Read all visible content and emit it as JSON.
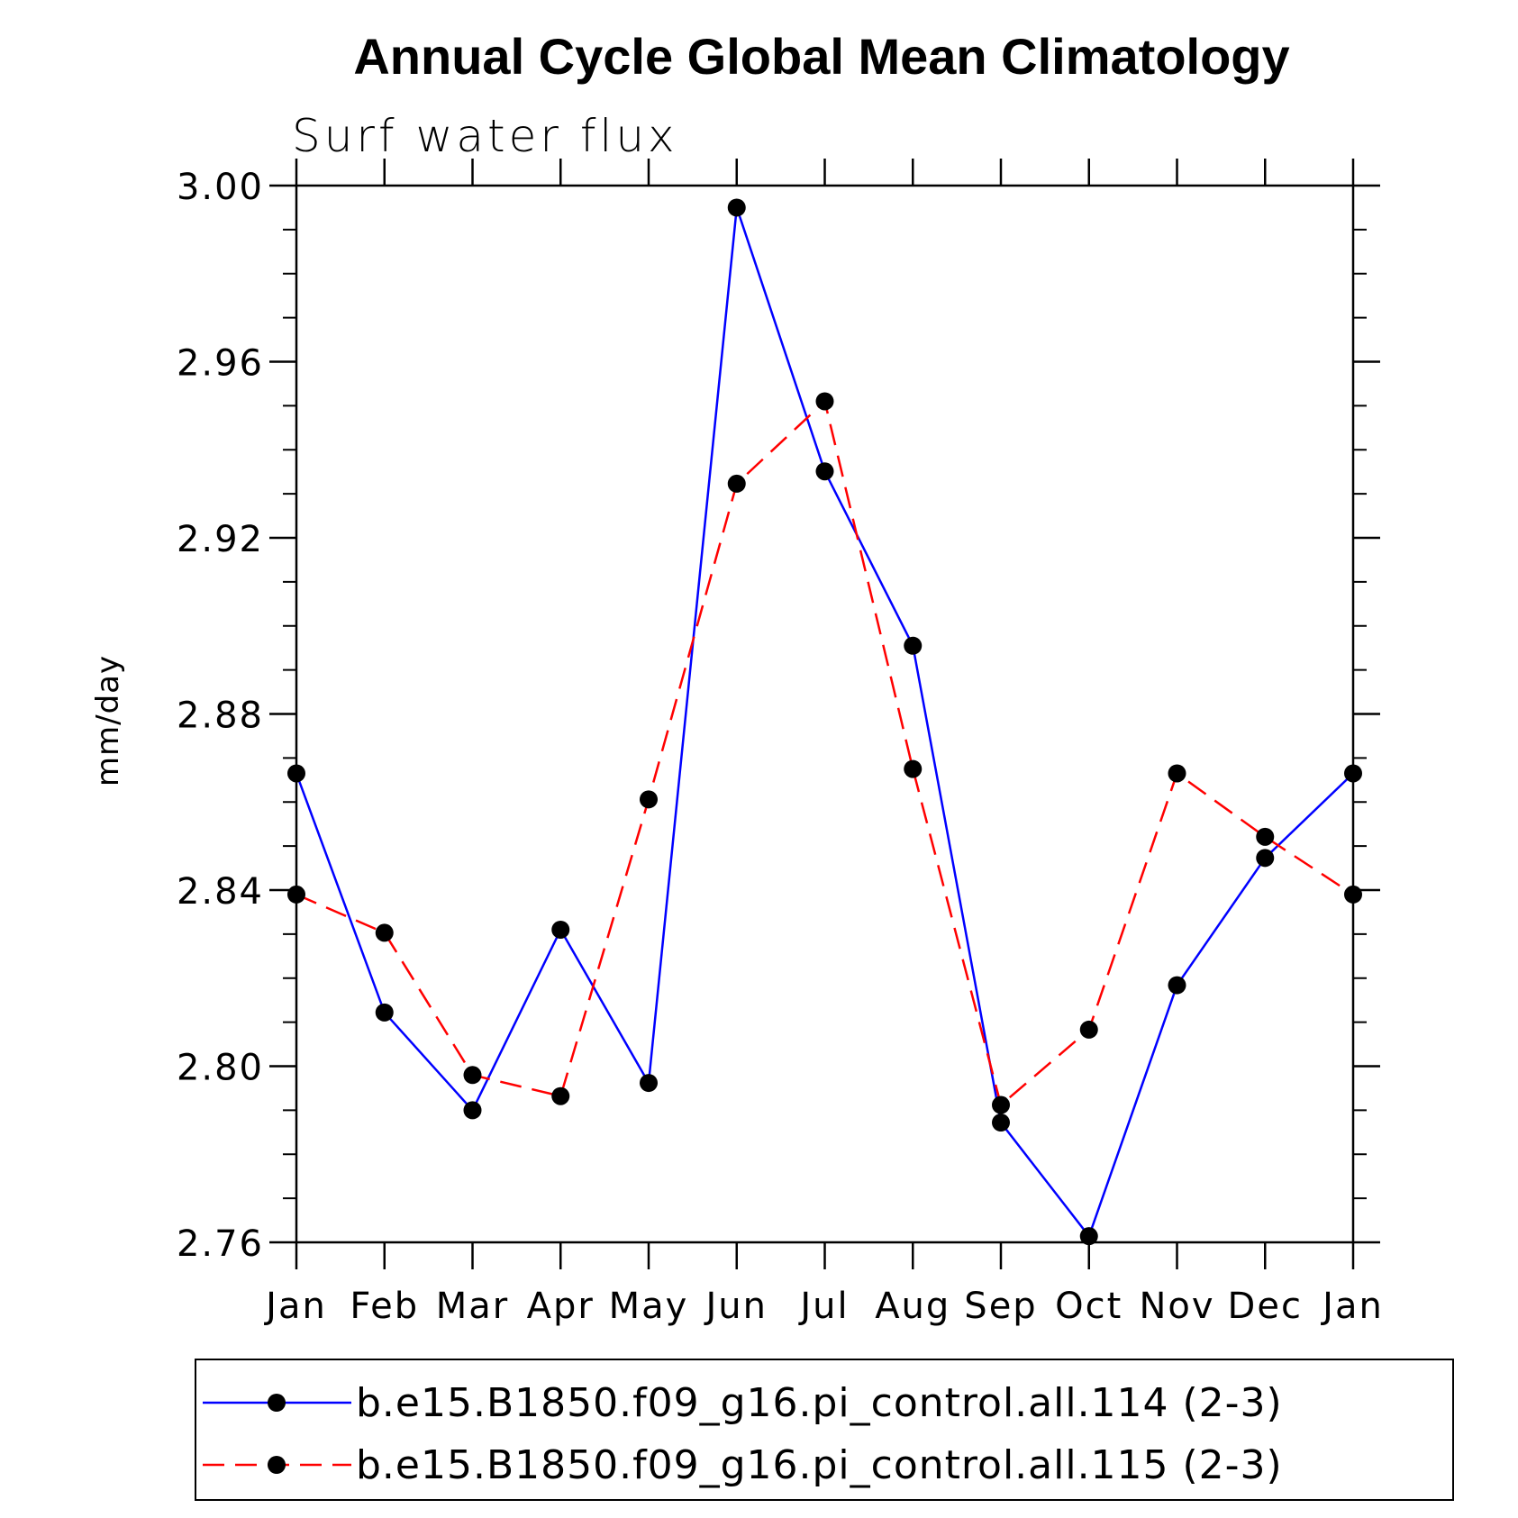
{
  "chart_data": {
    "type": "line",
    "title": "Annual Cycle Global Mean Climatology",
    "subtitle": "Surf water flux",
    "xlabel": "",
    "ylabel": "mm/day",
    "categories": [
      "Jan",
      "Feb",
      "Mar",
      "Apr",
      "May",
      "Jun",
      "Jul",
      "Aug",
      "Sep",
      "Oct",
      "Nov",
      "Dec",
      "Jan"
    ],
    "ylim": [
      2.76,
      3.0
    ],
    "yticks": [
      "2.76",
      "2.80",
      "2.84",
      "2.88",
      "2.92",
      "2.96",
      "3.00"
    ],
    "legend_position": "bottom",
    "series": [
      {
        "name": "b.e15.B1850.f09_g16.pi_control.all.114 (2-3)",
        "color": "#0000ff",
        "line_style": "solid",
        "marker": "filled-circle",
        "values": [
          2.8665,
          2.8122,
          2.79,
          2.831,
          2.7962,
          2.995,
          2.9351,
          2.8955,
          2.7872,
          2.7614,
          2.8184,
          2.8473,
          2.8665
        ]
      },
      {
        "name": "b.e15.B1850.f09_g16.pi_control.all.115 (2-3)",
        "color": "#ff0000",
        "line_style": "dashed",
        "marker": "filled-circle",
        "values": [
          2.839,
          2.8303,
          2.798,
          2.7932,
          2.8606,
          2.9323,
          2.951,
          2.8675,
          2.7912,
          2.8083,
          2.8665,
          2.8521,
          2.839
        ]
      }
    ]
  }
}
